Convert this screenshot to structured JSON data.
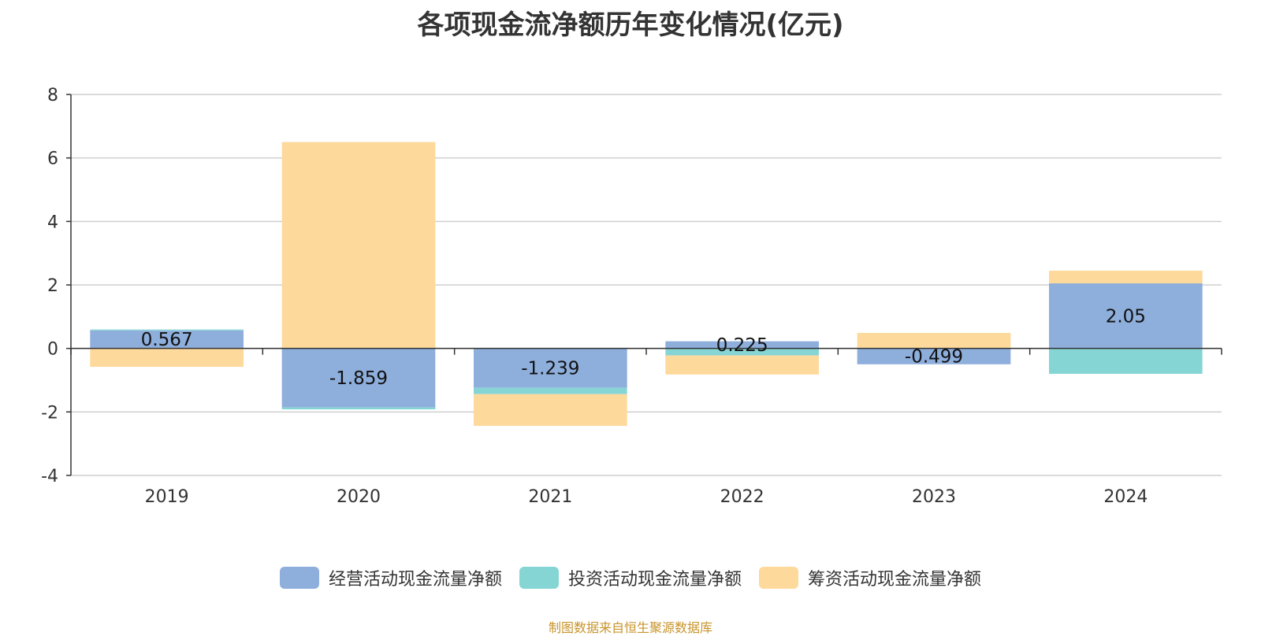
{
  "chart_data": {
    "type": "bar",
    "stacked": true,
    "title": "各项现金流净额历年变化情况(亿元)",
    "categories": [
      "2019",
      "2020",
      "2021",
      "2022",
      "2023",
      "2024"
    ],
    "series": [
      {
        "name": "经营活动现金流量净额",
        "color": "#8eaedc",
        "values": [
          0.567,
          -1.859,
          -1.239,
          0.225,
          -0.499,
          2.05
        ],
        "labels": [
          "0.567",
          "-1.859",
          "-1.239",
          "0.225",
          "-0.499",
          "2.05"
        ]
      },
      {
        "name": "投资活动现金流量净额",
        "color": "#86d5d5",
        "values": [
          0.03,
          -0.06,
          -0.2,
          -0.22,
          0.0,
          -0.8
        ]
      },
      {
        "name": "筹资活动现金流量净额",
        "color": "#fdd99b",
        "values": [
          -0.58,
          6.5,
          -1.0,
          -0.6,
          0.49,
          0.4
        ]
      }
    ],
    "ylim": [
      -4,
      8
    ],
    "yticks": [
      -4,
      -2,
      0,
      2,
      4,
      6,
      8
    ],
    "grid": true,
    "legend_position": "bottom"
  },
  "footer": {
    "source": "制图数据来自恒生聚源数据库"
  }
}
